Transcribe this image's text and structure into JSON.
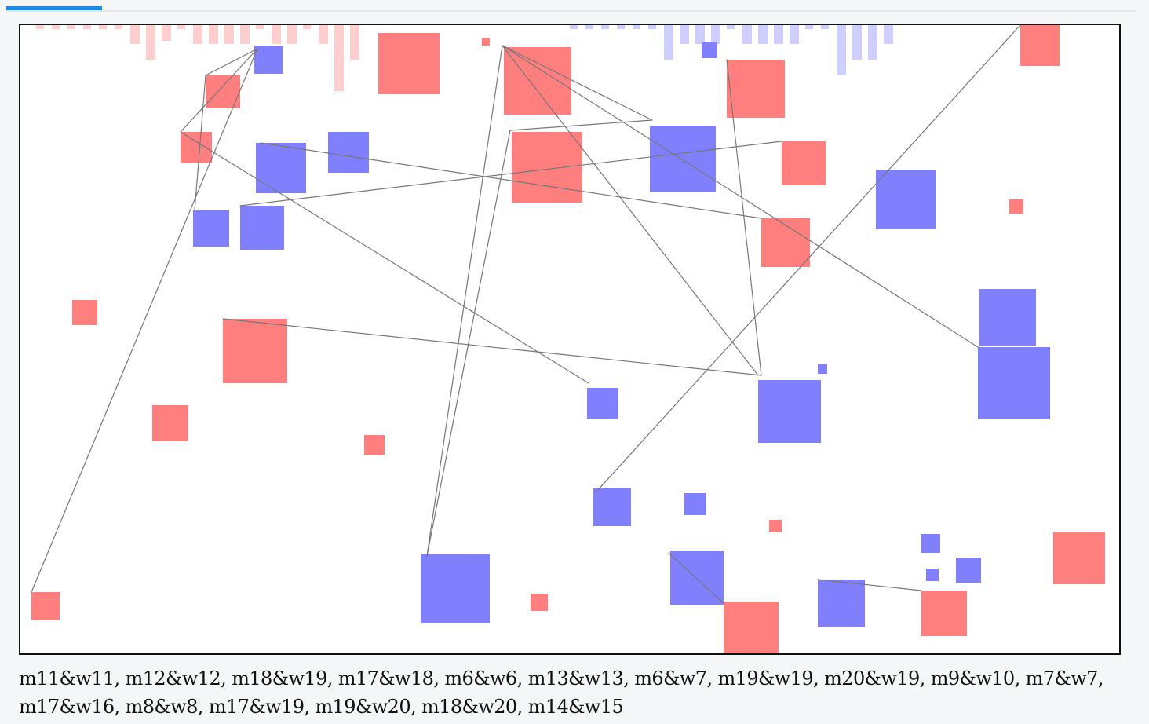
{
  "app": {
    "active_tab_indicator": "blue-underline",
    "accent": "#1e88e5"
  },
  "colors": {
    "men_fill": "#ff7f7f",
    "men_hist": "#ffcfcf",
    "women_fill": "#8080ff",
    "women_hist": "#cfcfff",
    "line": "#777777"
  },
  "pairs": "m11&w11, m12&w12, m18&w19, m17&w18, m6&w6, m13&w13, m6&w7, m19&w19, m20&w19, m9&w10, m7&w7, m17&w16, m8&w8, m17&w19, m19&w20, m18&w20, m14&w15"
}
